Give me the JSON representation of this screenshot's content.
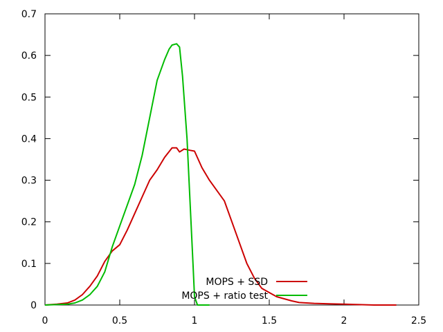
{
  "chart_data": {
    "type": "line",
    "title": "",
    "xlabel": "",
    "ylabel": "",
    "xlim": [
      0,
      2.5
    ],
    "ylim": [
      0,
      0.7
    ],
    "grid": false,
    "legend_position": "bottom-center",
    "x_ticks": [
      "0",
      "0.5",
      "1",
      "1.5",
      "2",
      "2.5"
    ],
    "y_ticks": [
      "0",
      "0.1",
      "0.2",
      "0.3",
      "0.4",
      "0.5",
      "0.6",
      "0.7"
    ],
    "series": [
      {
        "name": "MOPS + SSD",
        "color": "#cc0000",
        "x": [
          0.0,
          0.08,
          0.15,
          0.2,
          0.25,
          0.3,
          0.35,
          0.4,
          0.45,
          0.5,
          0.55,
          0.6,
          0.65,
          0.7,
          0.75,
          0.8,
          0.85,
          0.88,
          0.9,
          0.93,
          0.97,
          1.0,
          1.05,
          1.1,
          1.15,
          1.2,
          1.25,
          1.3,
          1.35,
          1.4,
          1.45,
          1.5,
          1.55,
          1.6,
          1.65,
          1.7,
          1.8,
          1.9,
          2.0,
          2.1,
          2.2,
          2.35
        ],
        "y": [
          0.0,
          0.002,
          0.005,
          0.012,
          0.025,
          0.045,
          0.07,
          0.105,
          0.13,
          0.145,
          0.18,
          0.22,
          0.26,
          0.3,
          0.325,
          0.355,
          0.378,
          0.378,
          0.368,
          0.375,
          0.372,
          0.37,
          0.33,
          0.3,
          0.275,
          0.25,
          0.2,
          0.15,
          0.1,
          0.065,
          0.04,
          0.03,
          0.02,
          0.015,
          0.01,
          0.006,
          0.004,
          0.003,
          0.002,
          0.001,
          0.0,
          0.0
        ]
      },
      {
        "name": "MOPS + ratio test",
        "color": "#00bb00",
        "x": [
          0.0,
          0.15,
          0.2,
          0.25,
          0.3,
          0.35,
          0.4,
          0.45,
          0.5,
          0.55,
          0.6,
          0.65,
          0.7,
          0.75,
          0.8,
          0.83,
          0.85,
          0.88,
          0.9,
          0.92,
          0.95,
          0.97,
          0.99,
          1.0,
          1.02,
          1.1
        ],
        "y": [
          0.0,
          0.002,
          0.005,
          0.012,
          0.025,
          0.045,
          0.08,
          0.14,
          0.19,
          0.24,
          0.29,
          0.36,
          0.45,
          0.54,
          0.59,
          0.615,
          0.625,
          0.628,
          0.62,
          0.55,
          0.4,
          0.25,
          0.1,
          0.02,
          0.0,
          0.0
        ]
      }
    ]
  }
}
